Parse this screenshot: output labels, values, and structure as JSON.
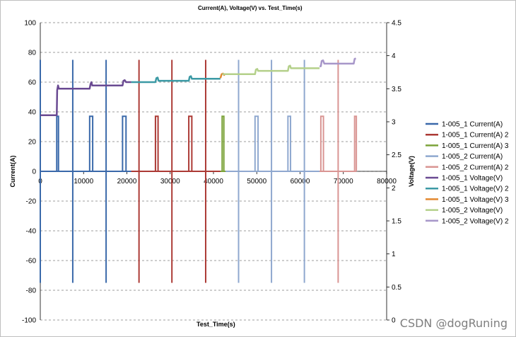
{
  "watermark": "CSDN @dogRuning",
  "chart_data": {
    "type": "line",
    "title": "Current(A), Voltage(V) vs. Test_Time(s)",
    "xlabel": "Test_Time(s)",
    "ylabel": "Current(A)",
    "y2label": "Voltage(V)",
    "xlim": [
      0,
      80000
    ],
    "ylim": [
      -100,
      100
    ],
    "y2lim": [
      0,
      4.5
    ],
    "xticks": [
      "0",
      "10000",
      "20000",
      "30000",
      "40000",
      "50000",
      "60000",
      "70000",
      "80000"
    ],
    "yticks": [
      "100",
      "80",
      "60",
      "40",
      "20",
      "0",
      "-20",
      "-40",
      "-60",
      "-80",
      "-100"
    ],
    "y2ticks": [
      "4.5",
      "4",
      "3.5",
      "3",
      "2.5",
      "2",
      "1.5",
      "1",
      "0.5",
      "0"
    ],
    "legend_position": "right",
    "series": [
      {
        "name": "1-005_1 Current(A)",
        "axis": "left",
        "color": "#3a69aa",
        "pulses": [
          {
            "x": 0,
            "y": 75
          },
          {
            "x": 0,
            "y": -75
          },
          {
            "x": 3800,
            "y": 37,
            "w": 400
          },
          {
            "x": 7500,
            "y": 75
          },
          {
            "x": 7500,
            "y": -75
          },
          {
            "x": 11400,
            "y": 37,
            "w": 700
          },
          {
            "x": 15200,
            "y": 75
          },
          {
            "x": 15200,
            "y": -75
          },
          {
            "x": 19000,
            "y": 37,
            "w": 800
          }
        ],
        "x_start": 0,
        "x_end": 22000
      },
      {
        "name": "1-005_1 Current(A)  2",
        "axis": "left",
        "color": "#ac3a35",
        "pulses": [
          {
            "x": 22800,
            "y": 75
          },
          {
            "x": 22800,
            "y": -75
          },
          {
            "x": 26600,
            "y": 37,
            "w": 600
          },
          {
            "x": 30400,
            "y": 75
          },
          {
            "x": 30400,
            "y": -75
          },
          {
            "x": 34300,
            "y": 37,
            "w": 700
          },
          {
            "x": 38200,
            "y": 75
          },
          {
            "x": 38200,
            "y": -75
          }
        ],
        "x_start": 21000,
        "x_end": 42000
      },
      {
        "name": "1-005_1 Current(A)  3",
        "axis": "left",
        "color": "#7ca33a",
        "pulses": [
          {
            "x": 42000,
            "y": 37,
            "w": 400
          }
        ],
        "x_start": 41600,
        "x_end": 42800
      },
      {
        "name": "1-005_2 Current(A)",
        "axis": "left",
        "color": "#8fa8cf",
        "pulses": [
          {
            "x": 45800,
            "y": 75
          },
          {
            "x": 45800,
            "y": -75
          },
          {
            "x": 49600,
            "y": 37,
            "w": 700
          },
          {
            "x": 53400,
            "y": 75
          },
          {
            "x": 53400,
            "y": -75
          },
          {
            "x": 57200,
            "y": 37,
            "w": 600
          },
          {
            "x": 61000,
            "y": 75
          },
          {
            "x": 61000,
            "y": -75
          }
        ],
        "x_start": 42800,
        "x_end": 64800
      },
      {
        "name": "1-005_2 Current(A)  2",
        "axis": "left",
        "color": "#d99593",
        "pulses": [
          {
            "x": 64800,
            "y": 37,
            "w": 600
          },
          {
            "x": 68800,
            "y": 75
          },
          {
            "x": 68800,
            "y": -75
          },
          {
            "x": 72600,
            "y": 37,
            "w": 400
          }
        ],
        "x_start": 64500,
        "x_end": 73000
      },
      {
        "name": "1-005_1 Voltage(V)",
        "axis": "right",
        "color": "#6a4a92",
        "steps": [
          [
            0,
            3.1
          ],
          [
            3800,
            3.1
          ],
          [
            3900,
            3.48
          ],
          [
            4100,
            3.55
          ],
          [
            4300,
            3.5
          ],
          [
            11400,
            3.5
          ],
          [
            11600,
            3.57
          ],
          [
            11800,
            3.6
          ],
          [
            12000,
            3.55
          ],
          [
            19000,
            3.55
          ],
          [
            19200,
            3.62
          ],
          [
            19500,
            3.63
          ],
          [
            19800,
            3.6
          ],
          [
            21000,
            3.6
          ]
        ]
      },
      {
        "name": "1-005_1 Voltage(V)  2",
        "axis": "right",
        "color": "#3c9aa5",
        "steps": [
          [
            21000,
            3.6
          ],
          [
            26600,
            3.6
          ],
          [
            26800,
            3.66
          ],
          [
            27100,
            3.67
          ],
          [
            27300,
            3.62
          ],
          [
            34300,
            3.62
          ],
          [
            34500,
            3.68
          ],
          [
            34800,
            3.69
          ],
          [
            35000,
            3.65
          ],
          [
            41600,
            3.65
          ]
        ]
      },
      {
        "name": "1-005_1 Voltage(V)  3",
        "axis": "right",
        "color": "#e3882f",
        "steps": [
          [
            41600,
            3.66
          ],
          [
            41900,
            3.72
          ],
          [
            42200,
            3.73
          ],
          [
            42600,
            3.7
          ]
        ]
      },
      {
        "name": "1-005_2 Voltage(V)",
        "axis": "right",
        "color": "#b4d08a",
        "steps": [
          [
            42000,
            3.72
          ],
          [
            49600,
            3.72
          ],
          [
            49800,
            3.79
          ],
          [
            50100,
            3.8
          ],
          [
            50300,
            3.77
          ],
          [
            57200,
            3.77
          ],
          [
            57400,
            3.84
          ],
          [
            57700,
            3.85
          ],
          [
            57900,
            3.81
          ],
          [
            64500,
            3.81
          ]
        ]
      },
      {
        "name": "1-005_2 Voltage(V)  2",
        "axis": "right",
        "color": "#a796c9",
        "steps": [
          [
            64500,
            3.84
          ],
          [
            64800,
            3.84
          ],
          [
            65000,
            3.92
          ],
          [
            65300,
            3.93
          ],
          [
            65600,
            3.88
          ],
          [
            72400,
            3.88
          ],
          [
            72600,
            3.95
          ],
          [
            72900,
            3.96
          ]
        ]
      }
    ]
  }
}
